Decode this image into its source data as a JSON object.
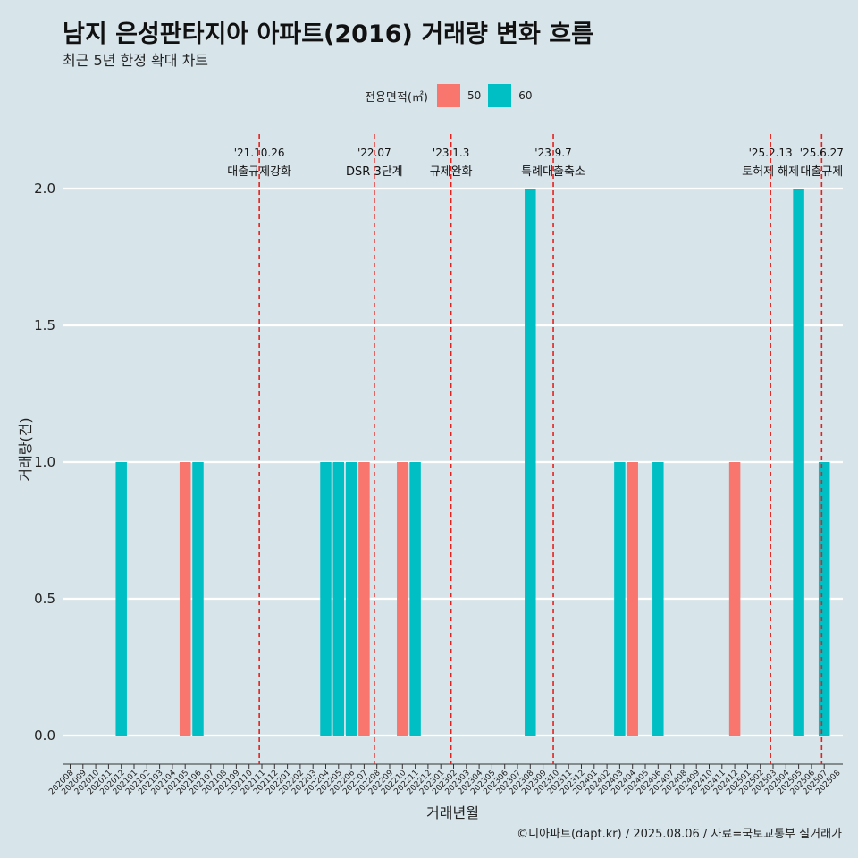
{
  "title": "남지 은성판타지아 아파트(2016) 거래량 변화 흐름",
  "subtitle": "최근 5년 한정 확대 차트",
  "caption": "©디아파트(dapt.kr) / 2025.08.06 / 자료=국토교통부 실거래가",
  "legend": {
    "title": "전용면적(㎡)",
    "items": [
      {
        "label": "50",
        "color": "#f8766d"
      },
      {
        "label": "60",
        "color": "#00bfc4"
      }
    ]
  },
  "chart_data": {
    "type": "bar",
    "xlabel": "거래년월",
    "ylabel": "거래량(건)",
    "ylim": [
      0,
      2
    ],
    "yticks": [
      0.0,
      0.5,
      1.0,
      1.5,
      2.0
    ],
    "ytick_labels": [
      "0.0",
      "0.5",
      "1.0",
      "1.5",
      "2.0"
    ],
    "grid": true,
    "categories": [
      "202008",
      "202009",
      "202010",
      "202011",
      "202012",
      "202101",
      "202102",
      "202103",
      "202104",
      "202105",
      "202106",
      "202107",
      "202108",
      "202109",
      "202110",
      "202111",
      "202112",
      "202201",
      "202202",
      "202203",
      "202204",
      "202205",
      "202206",
      "202207",
      "202208",
      "202209",
      "202210",
      "202211",
      "202212",
      "202301",
      "202302",
      "202303",
      "202304",
      "202305",
      "202306",
      "202307",
      "202308",
      "202309",
      "202310",
      "202311",
      "202312",
      "202401",
      "202402",
      "202403",
      "202404",
      "202405",
      "202406",
      "202407",
      "202408",
      "202409",
      "202410",
      "202411",
      "202412",
      "202501",
      "202502",
      "202503",
      "202504",
      "202505",
      "202506",
      "202507",
      "202508"
    ],
    "bars": [
      {
        "month": "202012",
        "area": "60",
        "value": 1
      },
      {
        "month": "202105",
        "area": "50",
        "value": 1
      },
      {
        "month": "202106",
        "area": "60",
        "value": 1
      },
      {
        "month": "202204",
        "area": "60",
        "value": 1
      },
      {
        "month": "202205",
        "area": "60",
        "value": 1
      },
      {
        "month": "202206",
        "area": "60",
        "value": 1
      },
      {
        "month": "202207",
        "area": "50",
        "value": 1
      },
      {
        "month": "202210",
        "area": "50",
        "value": 1
      },
      {
        "month": "202211",
        "area": "60",
        "value": 1
      },
      {
        "month": "202308",
        "area": "60",
        "value": 2
      },
      {
        "month": "202403",
        "area": "60",
        "value": 1
      },
      {
        "month": "202404",
        "area": "50",
        "value": 1
      },
      {
        "month": "202406",
        "area": "60",
        "value": 1
      },
      {
        "month": "202412",
        "area": "50",
        "value": 1
      },
      {
        "month": "202505",
        "area": "60",
        "value": 2
      },
      {
        "month": "202507",
        "area": "60",
        "value": 1
      }
    ],
    "events": [
      {
        "date": "'21.10.26",
        "label": "대출규제강화",
        "month_pos": 14.8
      },
      {
        "date": "'22.07",
        "label": "DSR 3단계",
        "month_pos": 23.8
      },
      {
        "date": "'23.1.3",
        "label": "규제완화",
        "month_pos": 29.8
      },
      {
        "date": "'23.9.7",
        "label": "특례대출축소",
        "month_pos": 37.8
      },
      {
        "date": "'25.2.13",
        "label": "토허제 해제",
        "month_pos": 54.8
      },
      {
        "date": "'25.6.27",
        "label": "대출규제",
        "month_pos": 58.8
      }
    ]
  }
}
